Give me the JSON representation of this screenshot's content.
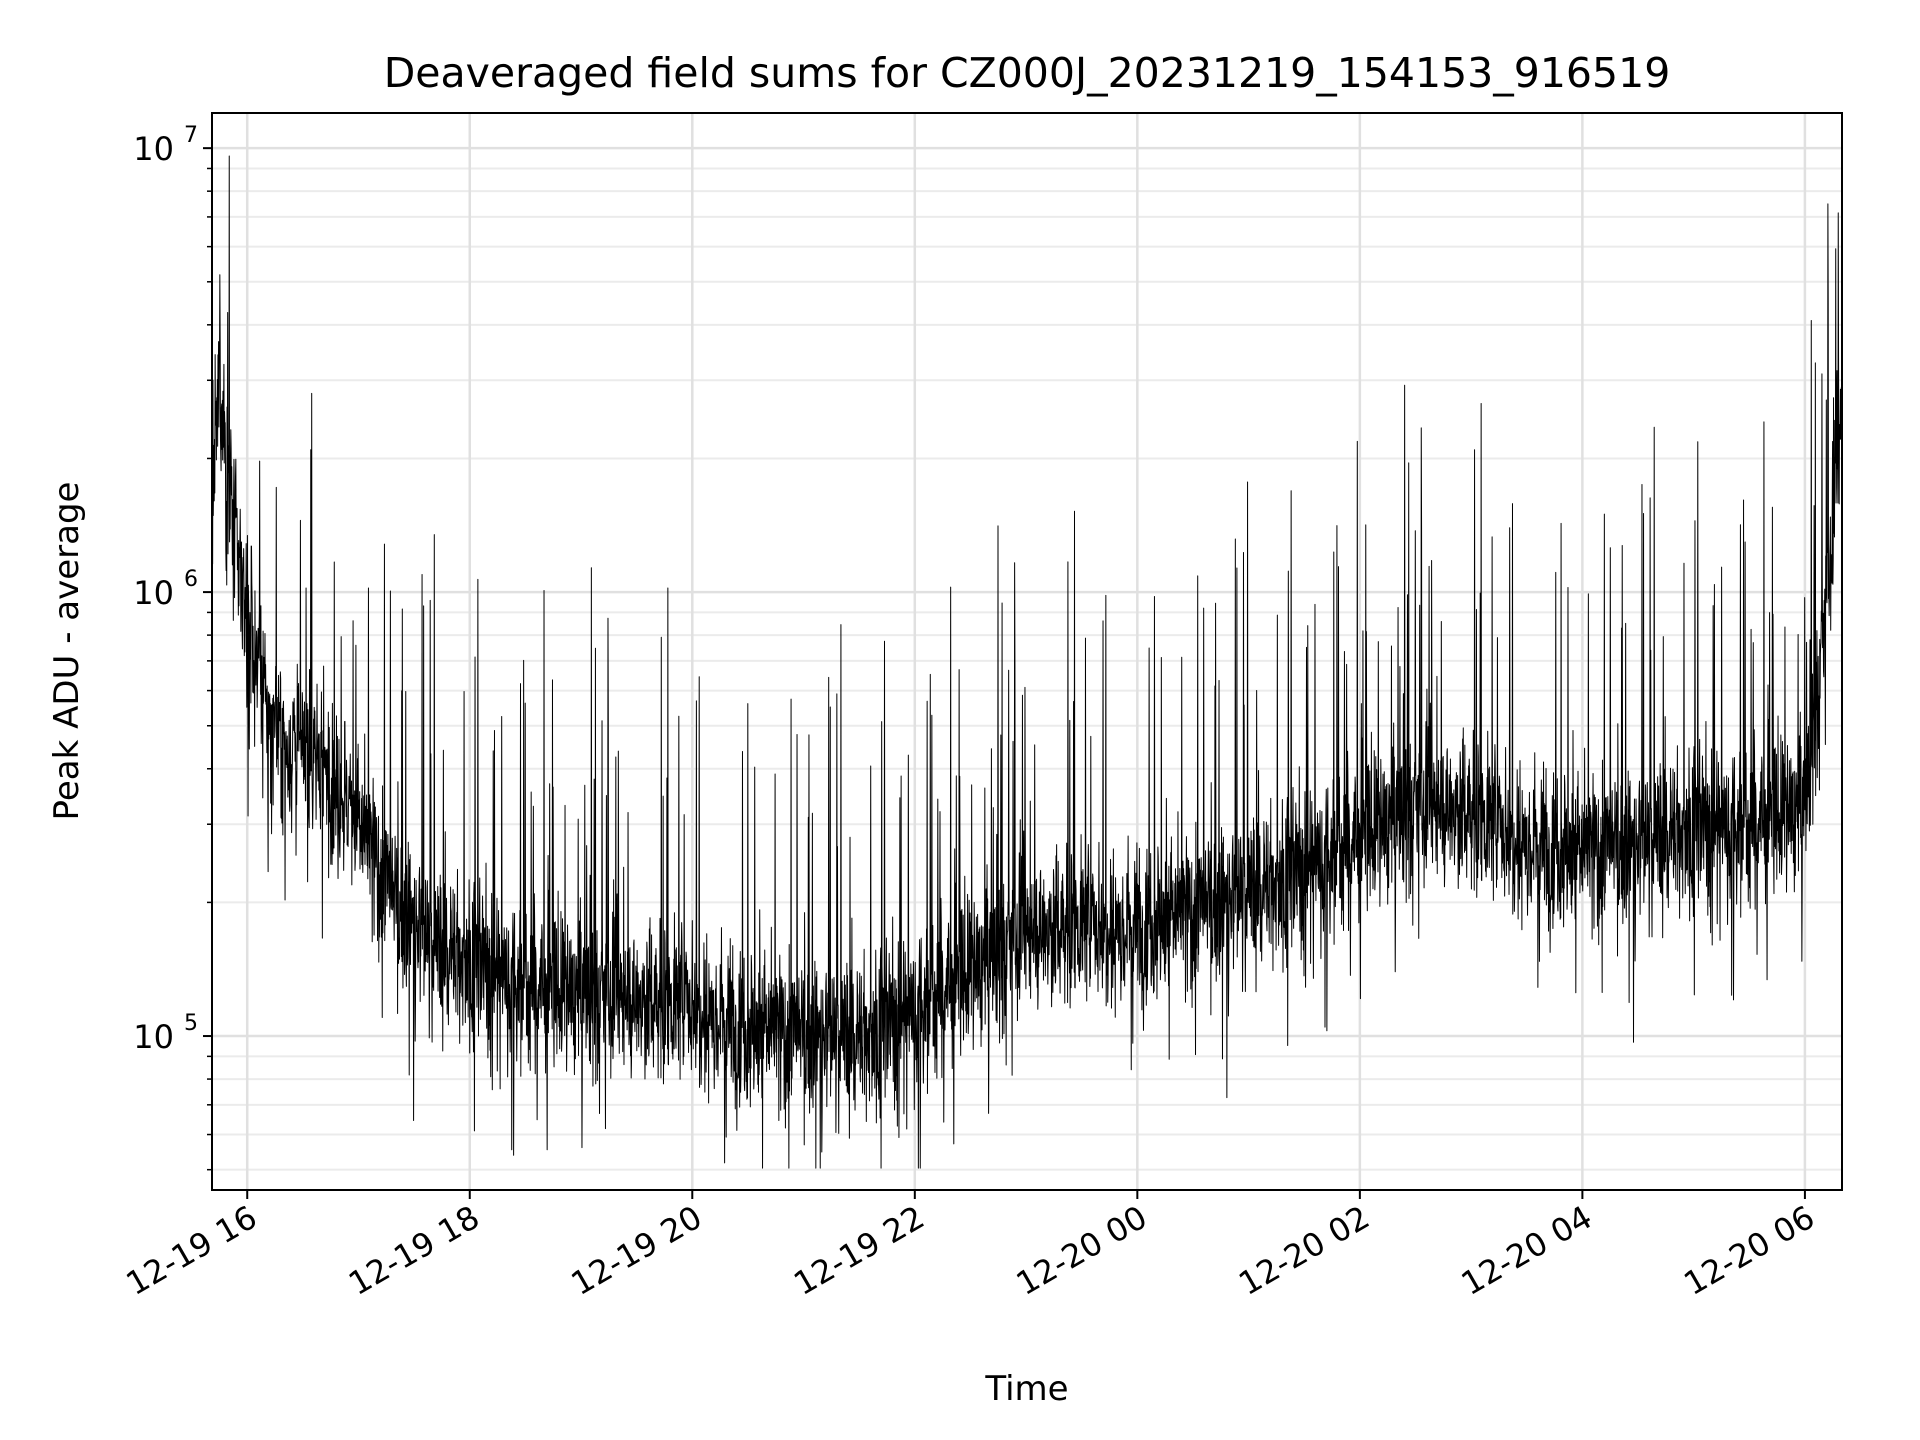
{
  "chart_data": {
    "type": "line",
    "title": "Deaveraged field sums for CZ000J_20231219_154153_916519",
    "xlabel": "Time",
    "ylabel": "Peak ADU - average",
    "yscale": "log",
    "ylim": [
      45000,
      12000000
    ],
    "xlim": [
      "2023-12-19 15:41",
      "2023-12-20 06:20"
    ],
    "grid": true,
    "line_color": "#000000",
    "x_ticks": [
      {
        "t": "2023-12-19 16:00",
        "label": "12-19 16"
      },
      {
        "t": "2023-12-19 18:00",
        "label": "12-19 18"
      },
      {
        "t": "2023-12-19 20:00",
        "label": "12-19 20"
      },
      {
        "t": "2023-12-19 22:00",
        "label": "12-19 22"
      },
      {
        "t": "2023-12-20 00:00",
        "label": "12-20 00"
      },
      {
        "t": "2023-12-20 02:00",
        "label": "12-20 02"
      },
      {
        "t": "2023-12-20 04:00",
        "label": "12-20 04"
      },
      {
        "t": "2023-12-20 06:00",
        "label": "12-20 06"
      }
    ],
    "y_ticks": [
      {
        "value": 100000,
        "base": "10",
        "exp": "5"
      },
      {
        "value": 1000000,
        "base": "10",
        "exp": "6"
      },
      {
        "value": 10000000,
        "base": "10",
        "exp": "7"
      }
    ],
    "series": [
      {
        "points": [
          [
            "2023-12-19 15:41",
            1500000
          ],
          [
            "2023-12-19 15:45",
            3000000
          ],
          [
            "2023-12-19 15:50",
            1800000
          ],
          [
            "2023-12-19 15:55",
            1200000
          ],
          [
            "2023-12-19 16:00",
            900000
          ],
          [
            "2023-12-19 16:10",
            550000
          ],
          [
            "2023-12-19 16:20",
            450000
          ],
          [
            "2023-12-19 16:40",
            420000
          ],
          [
            "2023-12-19 17:00",
            300000
          ],
          [
            "2023-12-19 17:20",
            200000
          ],
          [
            "2023-12-19 17:40",
            160000
          ],
          [
            "2023-12-19 18:00",
            150000
          ],
          [
            "2023-12-19 18:30",
            130000
          ],
          [
            "2023-12-19 19:00",
            125000
          ],
          [
            "2023-12-19 19:30",
            120000
          ],
          [
            "2023-12-19 20:00",
            120000
          ],
          [
            "2023-12-19 20:30",
            105000
          ],
          [
            "2023-12-19 21:00",
            100000
          ],
          [
            "2023-12-19 21:30",
            100000
          ],
          [
            "2023-12-19 22:00",
            115000
          ],
          [
            "2023-12-19 22:30",
            140000
          ],
          [
            "2023-12-19 23:00",
            170000
          ],
          [
            "2023-12-19 23:30",
            180000
          ],
          [
            "2023-12-20 00:00",
            180000
          ],
          [
            "2023-12-20 00:30",
            190000
          ],
          [
            "2023-12-20 01:00",
            210000
          ],
          [
            "2023-12-20 01:30",
            240000
          ],
          [
            "2023-12-20 02:00",
            280000
          ],
          [
            "2023-12-20 02:30",
            330000
          ],
          [
            "2023-12-20 03:00",
            320000
          ],
          [
            "2023-12-20 03:30",
            280000
          ],
          [
            "2023-12-20 04:00",
            260000
          ],
          [
            "2023-12-20 04:30",
            270000
          ],
          [
            "2023-12-20 05:00",
            300000
          ],
          [
            "2023-12-20 05:30",
            300000
          ],
          [
            "2023-12-20 06:00",
            330000
          ],
          [
            "2023-12-20 06:10",
            800000
          ],
          [
            "2023-12-20 06:20",
            2500000
          ]
        ]
      }
    ]
  }
}
